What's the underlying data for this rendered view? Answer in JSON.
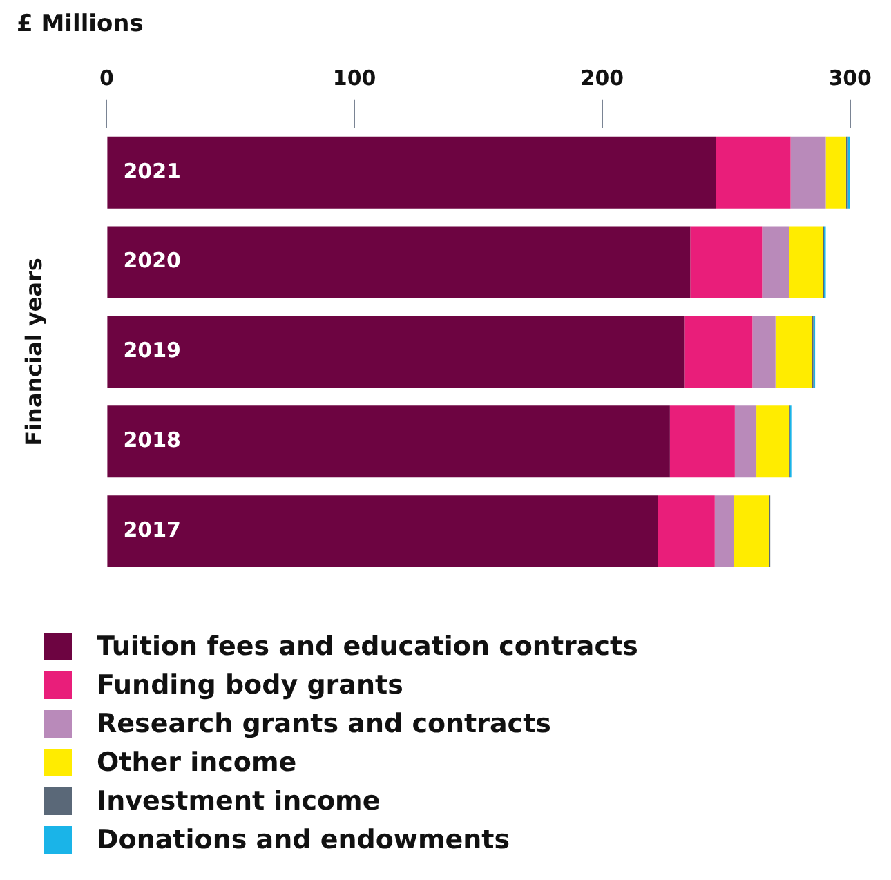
{
  "chart_data": {
    "type": "bar",
    "orientation": "horizontal",
    "stacked": true,
    "title": "£ Millions",
    "ylabel": "Financial years",
    "categories": [
      "2021",
      "2020",
      "2019",
      "2018",
      "2017"
    ],
    "series": [
      {
        "name": "Tuition fees and education contracts",
        "color": "#6d0441",
        "values": [
          245.9,
          235.5,
          233.3,
          227.3,
          222.4
        ]
      },
      {
        "name": "Funding body grants",
        "color": "#e91e7a",
        "values": [
          30.1,
          29.0,
          27.3,
          26.2,
          23.0
        ]
      },
      {
        "name": "Research grants and contracts",
        "color": "#b98aba",
        "values": [
          14.2,
          10.9,
          9.3,
          8.7,
          7.7
        ]
      },
      {
        "name": "Other income",
        "color": "#ffec00",
        "values": [
          8.2,
          13.7,
          14.8,
          13.1,
          14.2
        ]
      },
      {
        "name": "Investment income",
        "color": "#5a6878",
        "values": [
          0.7,
          0.4,
          0.5,
          0.5,
          0.5
        ]
      },
      {
        "name": "Donations and endowments",
        "color": "#1ab4e8",
        "values": [
          0.9,
          0.7,
          0.7,
          0.5,
          0
        ]
      }
    ],
    "xlim": [
      0,
      300
    ],
    "xticks": [
      0,
      100,
      200,
      300
    ],
    "grid": false,
    "legend": "bottom"
  }
}
